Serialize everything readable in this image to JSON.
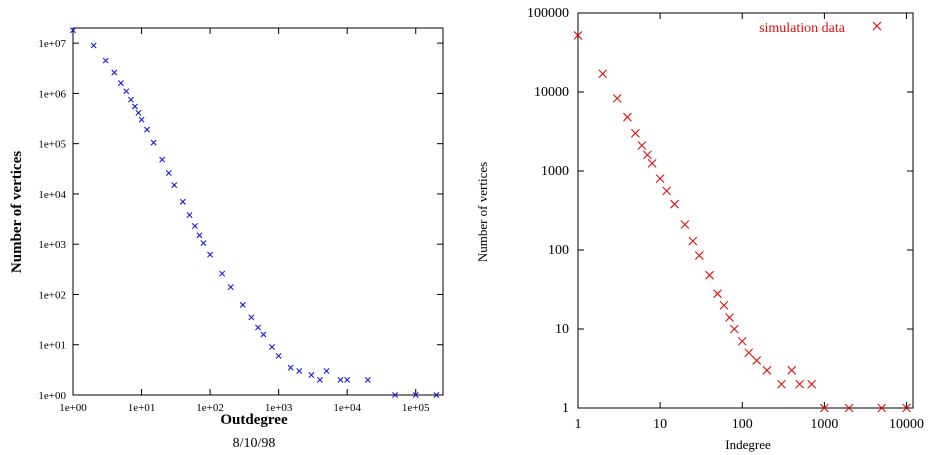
{
  "chart_data": [
    {
      "type": "scatter",
      "xlabel": "Outdegree",
      "ylabel": "Number of vertices",
      "subtitle": "8/10/98",
      "xscale": "log",
      "yscale": "log",
      "xlim": [
        1,
        250000
      ],
      "ylim": [
        1,
        20000000
      ],
      "marker": "x",
      "color": "#1a1adf",
      "x_ticks": [
        "1e+00",
        "1e+01",
        "1e+02",
        "1e+03",
        "1e+04",
        "1e+05"
      ],
      "y_ticks": [
        "1e+00",
        "1e+01",
        "1e+02",
        "1e+03",
        "1e+04",
        "1e+05",
        "1e+06",
        "1e+07"
      ],
      "legend": "none",
      "series": [
        {
          "points": [
            [
              1,
              18000000
            ],
            [
              2,
              9000000
            ],
            [
              3,
              4500000
            ],
            [
              4,
              2600000
            ],
            [
              5,
              1600000
            ],
            [
              6,
              1100000
            ],
            [
              7,
              750000
            ],
            [
              8,
              550000
            ],
            [
              9,
              410000
            ],
            [
              10,
              300000
            ],
            [
              12,
              190000
            ],
            [
              15,
              105000
            ],
            [
              20,
              48000
            ],
            [
              25,
              26000
            ],
            [
              30,
              15000
            ],
            [
              40,
              7000
            ],
            [
              50,
              3800
            ],
            [
              60,
              2300
            ],
            [
              70,
              1500
            ],
            [
              80,
              1050
            ],
            [
              100,
              620
            ],
            [
              150,
              260
            ],
            [
              200,
              140
            ],
            [
              300,
              62
            ],
            [
              400,
              35
            ],
            [
              500,
              22
            ],
            [
              600,
              16
            ],
            [
              800,
              9
            ],
            [
              1000,
              6
            ],
            [
              1500,
              3.5
            ],
            [
              2000,
              3
            ],
            [
              3000,
              2.5
            ],
            [
              4000,
              2
            ],
            [
              5000,
              3
            ],
            [
              8000,
              2
            ],
            [
              10000,
              2
            ],
            [
              20000,
              2
            ],
            [
              50000,
              1
            ],
            [
              100000,
              1
            ],
            [
              200000,
              1
            ]
          ]
        }
      ]
    },
    {
      "type": "scatter",
      "xlabel": "Indegree",
      "ylabel": "Number of vertices",
      "xscale": "log",
      "yscale": "log",
      "xlim": [
        1,
        12000
      ],
      "ylim": [
        1,
        100000
      ],
      "marker": "x",
      "color": "#e01010",
      "x_ticks": [
        "1",
        "10",
        "100",
        "1000",
        "10000"
      ],
      "y_ticks": [
        "1",
        "10",
        "100",
        "1000",
        "10000",
        "100000"
      ],
      "legend": "top-right",
      "series": [
        {
          "name": "simulation data",
          "points": [
            [
              1,
              52000
            ],
            [
              2,
              17000
            ],
            [
              3,
              8300
            ],
            [
              4,
              4800
            ],
            [
              5,
              3000
            ],
            [
              6,
              2100
            ],
            [
              7,
              1600
            ],
            [
              8,
              1250
            ],
            [
              10,
              800
            ],
            [
              12,
              560
            ],
            [
              15,
              380
            ],
            [
              20,
              210
            ],
            [
              25,
              130
            ],
            [
              30,
              85
            ],
            [
              40,
              48
            ],
            [
              50,
              28
            ],
            [
              60,
              20
            ],
            [
              70,
              14
            ],
            [
              80,
              10
            ],
            [
              100,
              7
            ],
            [
              120,
              5
            ],
            [
              150,
              4
            ],
            [
              200,
              3
            ],
            [
              300,
              2
            ],
            [
              400,
              3
            ],
            [
              500,
              2
            ],
            [
              700,
              2
            ],
            [
              1000,
              1
            ],
            [
              2000,
              1
            ],
            [
              5000,
              1
            ],
            [
              10000,
              1
            ]
          ]
        }
      ]
    }
  ]
}
